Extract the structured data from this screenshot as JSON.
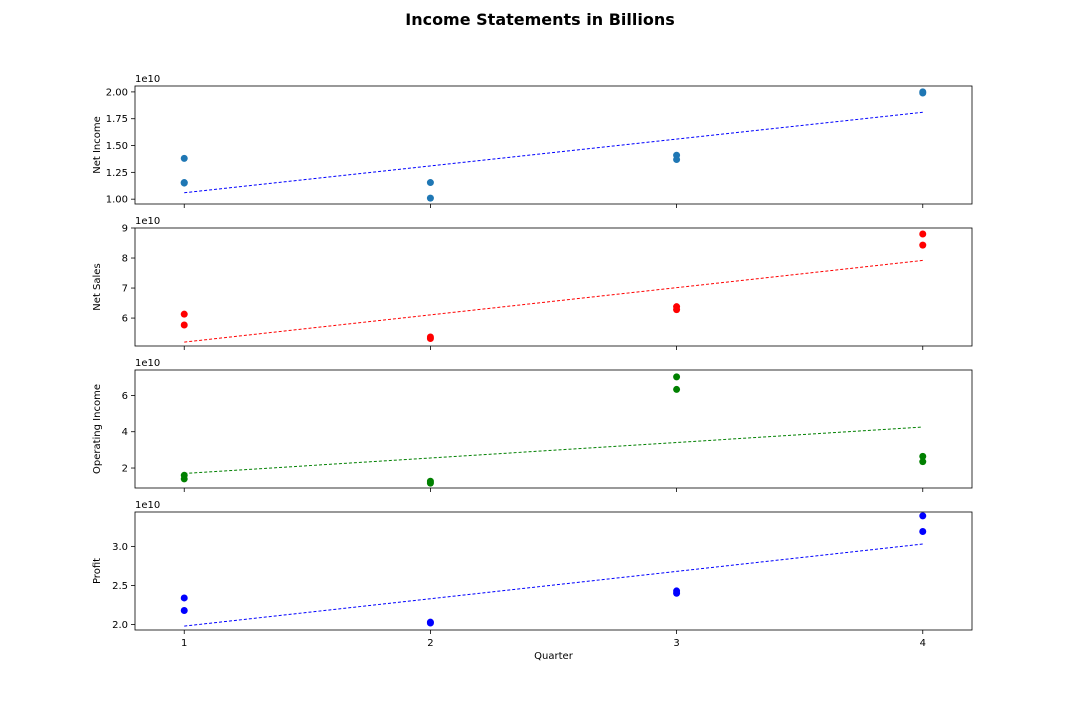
{
  "chart_data": {
    "type": "scatter",
    "title": "Income Statements in Billions",
    "xlabel": "Quarter",
    "x_ticks": [
      1,
      2,
      3,
      4
    ],
    "xlim": [
      0.8,
      4.2
    ],
    "offset_label": "1e10",
    "panels": [
      {
        "ylabel": "Net Income",
        "color": "#1f77b4",
        "trend_color": "#0000ff",
        "ylim": [
          0.955,
          2.055
        ],
        "y_ticks": [
          1.0,
          1.25,
          1.5,
          1.75,
          2.0
        ],
        "y_tick_labels": [
          "1.00",
          "1.25",
          "1.50",
          "1.75",
          "2.00"
        ],
        "points": [
          {
            "x": 1,
            "y": 1.38
          },
          {
            "x": 1,
            "y": 1.155
          },
          {
            "x": 1,
            "y": 1.15
          },
          {
            "x": 2,
            "y": 1.155
          },
          {
            "x": 2,
            "y": 1.01
          },
          {
            "x": 3,
            "y": 1.41
          },
          {
            "x": 3,
            "y": 1.37
          },
          {
            "x": 4,
            "y": 2.0
          },
          {
            "x": 4,
            "y": 1.99
          }
        ],
        "trend": {
          "x": [
            1,
            4
          ],
          "y": [
            1.06,
            1.81
          ]
        }
      },
      {
        "ylabel": "Net Sales",
        "color": "#ff0000",
        "trend_color": "#ff0000",
        "ylim": [
          5.07,
          9.0
        ],
        "y_ticks": [
          6,
          7,
          8,
          9
        ],
        "y_tick_labels": [
          "6",
          "7",
          "8",
          "9"
        ],
        "points": [
          {
            "x": 1,
            "y": 6.13
          },
          {
            "x": 1,
            "y": 5.77
          },
          {
            "x": 2,
            "y": 5.37
          },
          {
            "x": 2,
            "y": 5.32
          },
          {
            "x": 3,
            "y": 6.38
          },
          {
            "x": 3,
            "y": 6.28
          },
          {
            "x": 4,
            "y": 8.8
          },
          {
            "x": 4,
            "y": 8.43
          }
        ],
        "trend": {
          "x": [
            1,
            4
          ],
          "y": [
            5.2,
            7.92
          ]
        }
      },
      {
        "ylabel": "Operating Income",
        "color": "#008000",
        "trend_color": "#008000",
        "ylim": [
          0.9,
          7.4
        ],
        "y_ticks": [
          2,
          4,
          6
        ],
        "y_tick_labels": [
          "2",
          "4",
          "6"
        ],
        "points": [
          {
            "x": 1,
            "y": 1.6
          },
          {
            "x": 1,
            "y": 1.4
          },
          {
            "x": 2,
            "y": 1.27
          },
          {
            "x": 2,
            "y": 1.17
          },
          {
            "x": 3,
            "y": 7.02
          },
          {
            "x": 3,
            "y": 6.33
          },
          {
            "x": 4,
            "y": 2.64
          },
          {
            "x": 4,
            "y": 2.35
          }
        ],
        "trend": {
          "x": [
            1,
            4
          ],
          "y": [
            1.7,
            4.26
          ]
        }
      },
      {
        "ylabel": "Profit",
        "color": "#0000ff",
        "trend_color": "#0000ff",
        "ylim": [
          1.93,
          3.44
        ],
        "y_ticks": [
          2.0,
          2.5,
          3.0
        ],
        "y_tick_labels": [
          "2.0",
          "2.5",
          "3.0"
        ],
        "points": [
          {
            "x": 1,
            "y": 2.34
          },
          {
            "x": 1,
            "y": 2.18
          },
          {
            "x": 2,
            "y": 2.03
          },
          {
            "x": 2,
            "y": 2.02
          },
          {
            "x": 3,
            "y": 2.43
          },
          {
            "x": 3,
            "y": 2.4
          },
          {
            "x": 4,
            "y": 3.39
          },
          {
            "x": 4,
            "y": 3.19
          }
        ],
        "trend": {
          "x": [
            1,
            4
          ],
          "y": [
            1.98,
            3.03
          ]
        }
      }
    ]
  }
}
